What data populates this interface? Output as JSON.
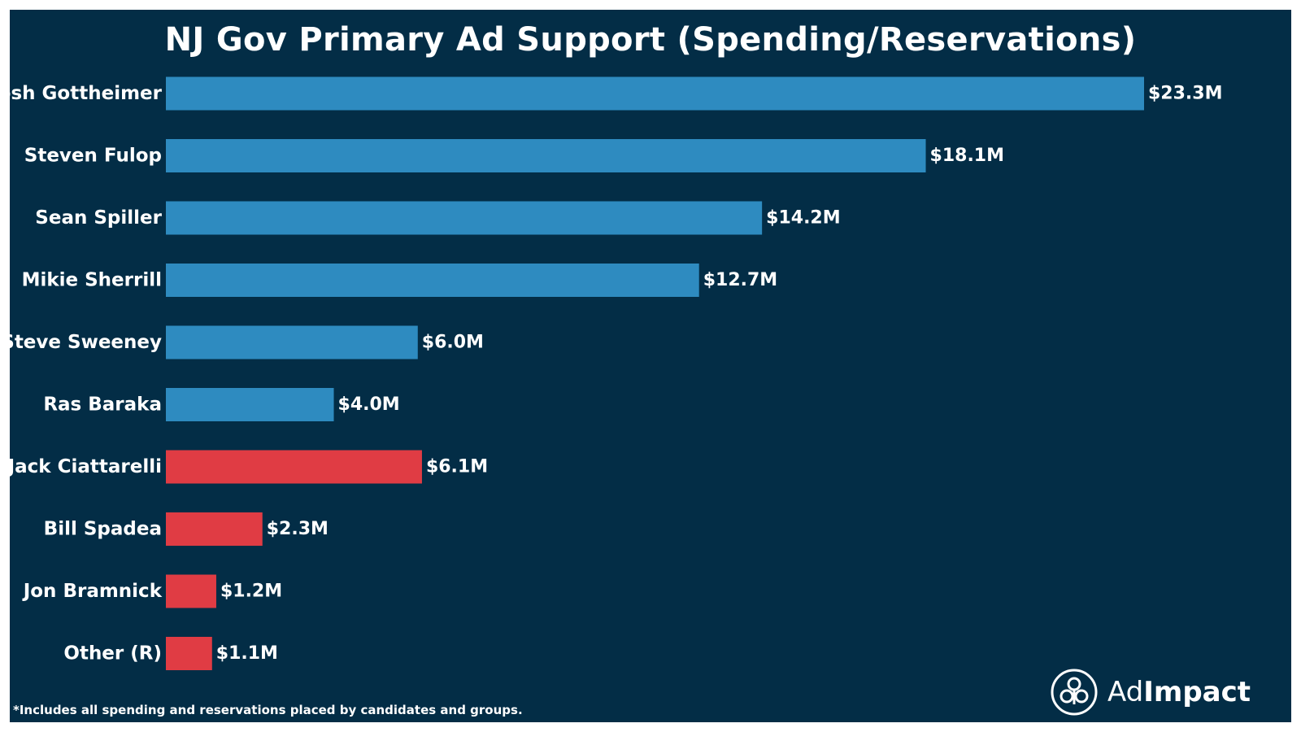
{
  "chart_data": {
    "type": "bar",
    "orientation": "horizontal",
    "title": "NJ Gov Primary Ad Support (Spending/Reservations)",
    "xlabel": "",
    "ylabel": "",
    "xlim": [
      0,
      23.3
    ],
    "grid": false,
    "categories": [
      "Josh Gottheimer",
      "Steven Fulop",
      "Sean Spiller",
      "Mikie Sherrill",
      "Steve Sweeney",
      "Ras Baraka",
      "Jack Ciattarelli",
      "Bill Spadea",
      "Jon Bramnick",
      "Other (R)"
    ],
    "values": [
      23.3,
      18.1,
      14.2,
      12.7,
      6.0,
      4.0,
      6.1,
      2.3,
      1.2,
      1.1
    ],
    "value_labels": [
      "$23.3M",
      "$18.1M",
      "$14.2M",
      "$12.7M",
      "$6.0M",
      "$4.0M",
      "$6.1M",
      "$2.3M",
      "$1.2M",
      "$1.1M"
    ],
    "party": [
      "D",
      "D",
      "D",
      "D",
      "D",
      "D",
      "R",
      "R",
      "R",
      "R"
    ],
    "colors": {
      "D": "#2e8bc0",
      "R": "#e03c44"
    },
    "footnote": "*Includes all spending and reservations placed by candidates and groups."
  },
  "branding": {
    "logo_text_light": "Ad",
    "logo_text_bold": "Impact",
    "logo_icon": "adimpact-logo-icon"
  },
  "colors": {
    "background": "#032d46",
    "text": "#ffffff"
  }
}
